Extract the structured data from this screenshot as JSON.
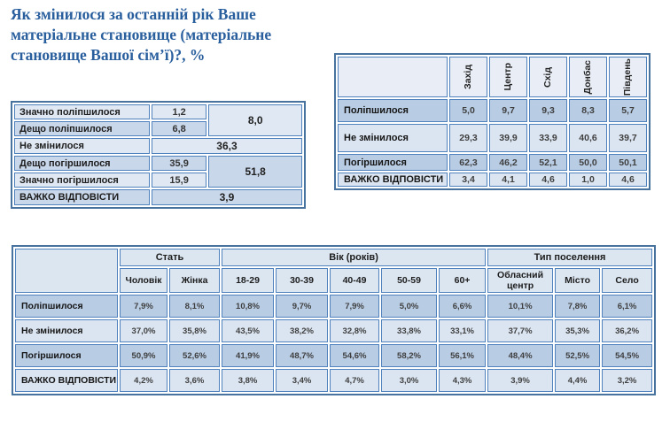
{
  "page": {
    "title": "Як змінилося за останній рік Ваше матеріальне становище (матеріальне становище Вашої сім’ї)?, %"
  },
  "colors": {
    "title_text": "#2a5f9e",
    "table_border": "#4f81bd",
    "band_dark": "#b8cce4",
    "band_light": "#dbe5f1",
    "header_pale": "#e9eef6"
  },
  "summary_table": {
    "rows": [
      {
        "label": "Значно поліпшилося",
        "value": "1,2"
      },
      {
        "label": "Дещо поліпшилося",
        "value": "6,8"
      },
      {
        "label": "Не змінилося",
        "value": "36,3"
      },
      {
        "label": "Дещо погіршилося",
        "value": "35,9"
      },
      {
        "label": "Значно погіршилося",
        "value": "15,9"
      },
      {
        "label": "ВАЖКО ВІДПОВІСТИ",
        "value": "3,9"
      }
    ],
    "improved_total": "8,0",
    "worsened_total": "51,8"
  },
  "region_table": {
    "columns": [
      "Захід",
      "Центр",
      "Схід",
      "Донбас",
      "Південь"
    ],
    "rows": [
      {
        "label": "Поліпшилося",
        "values": [
          "5,0",
          "9,7",
          "9,3",
          "8,3",
          "5,7"
        ]
      },
      {
        "label": "Не змінилося",
        "values": [
          "29,3",
          "39,9",
          "33,9",
          "40,6",
          "39,7"
        ]
      },
      {
        "label": "Погіршилося",
        "values": [
          "62,3",
          "46,2",
          "52,1",
          "50,0",
          "50,1"
        ]
      },
      {
        "label": "ВАЖКО ВІДПОВІСТИ",
        "values": [
          "3,4",
          "4,1",
          "4,6",
          "1,0",
          "4,6"
        ]
      }
    ]
  },
  "demographics_table": {
    "groups": [
      {
        "label": "Стать",
        "span": 2
      },
      {
        "label": "Вік  (років)",
        "span": 5
      },
      {
        "label": "Тип поселення",
        "span": 3
      }
    ],
    "columns": [
      "Чоловік",
      "Жінка",
      "18-29",
      "30-39",
      "40-49",
      "50-59",
      "60+",
      "Обласний центр",
      "Місто",
      "Село"
    ],
    "rows": [
      {
        "label": "Поліпшилося",
        "values": [
          "7,9%",
          "8,1%",
          "10,8%",
          "9,7%",
          "7,9%",
          "5,0%",
          "6,6%",
          "10,1%",
          "7,8%",
          "6,1%"
        ]
      },
      {
        "label": "Не змінилося",
        "values": [
          "37,0%",
          "35,8%",
          "43,5%",
          "38,2%",
          "32,8%",
          "33,8%",
          "33,1%",
          "37,7%",
          "35,3%",
          "36,2%"
        ]
      },
      {
        "label": "Погіршилося",
        "values": [
          "50,9%",
          "52,6%",
          "41,9%",
          "48,7%",
          "54,6%",
          "58,2%",
          "56,1%",
          "48,4%",
          "52,5%",
          "54,5%"
        ]
      },
      {
        "label": "ВАЖКО ВІДПОВІСТИ",
        "values": [
          "4,2%",
          "3,6%",
          "3,8%",
          "3,4%",
          "4,7%",
          "3,0%",
          "4,3%",
          "3,9%",
          "4,4%",
          "3,2%"
        ]
      }
    ]
  }
}
